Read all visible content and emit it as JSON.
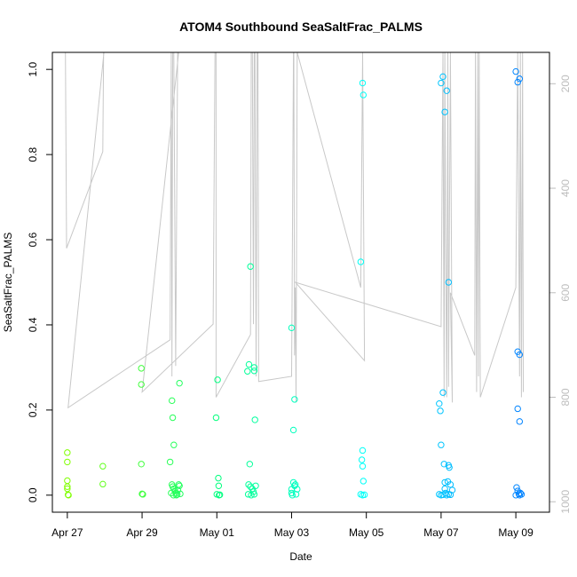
{
  "chart_data": {
    "type": "scatter",
    "title": "ATOM4 Southbound SeaSaltFrac_PALMS",
    "xlabel": "Date",
    "ylabel": "SeaSaltFrac_PALMS",
    "xlim": [
      -0.4,
      12.9
    ],
    "ylim": [
      -0.04,
      1.04
    ],
    "x_ticks": [
      {
        "value": 0,
        "label": "Apr 27"
      },
      {
        "value": 2,
        "label": "Apr 29"
      },
      {
        "value": 4,
        "label": "May 01"
      },
      {
        "value": 6,
        "label": "May 03"
      },
      {
        "value": 8,
        "label": "May 05"
      },
      {
        "value": 10,
        "label": "May 07"
      },
      {
        "value": 12,
        "label": "May 09"
      }
    ],
    "y_ticks": [
      0.0,
      0.2,
      0.4,
      0.6,
      0.8,
      1.0
    ],
    "y_tick_labels": [
      "0.0",
      "0.2",
      "0.4",
      "0.6",
      "0.8",
      "1.0"
    ],
    "right_axis": {
      "label": "",
      "lim": [
        1020,
        140
      ],
      "ticks": [
        200,
        400,
        600,
        800,
        1000
      ],
      "tick_labels": [
        "200",
        "400",
        "600",
        "800",
        "1000"
      ],
      "color": "#bdbdbd"
    },
    "x_units": "days since Apr 27",
    "series": [
      {
        "name": "SeaSaltFrac_PALMS",
        "marker": "open-circle",
        "color_by": "time",
        "color_scale": [
          "#80ff00",
          "#00ff80",
          "#00ffff",
          "#0080ff"
        ],
        "points": [
          [
            0.0,
            0.1
          ],
          [
            0.0,
            0.078
          ],
          [
            0.0,
            0.034
          ],
          [
            0.0,
            0.02
          ],
          [
            0.0,
            0.015
          ],
          [
            0.02,
            0.001
          ],
          [
            0.03,
            0.0
          ],
          [
            0.95,
            0.068
          ],
          [
            0.95,
            0.026
          ],
          [
            1.98,
            0.298
          ],
          [
            1.98,
            0.26
          ],
          [
            1.98,
            0.073
          ],
          [
            2.0,
            0.003
          ],
          [
            2.02,
            0.002
          ],
          [
            2.75,
            0.078
          ],
          [
            2.8,
            0.222
          ],
          [
            2.82,
            0.182
          ],
          [
            2.85,
            0.118
          ],
          [
            2.8,
            0.025
          ],
          [
            2.82,
            0.02
          ],
          [
            2.85,
            0.015
          ],
          [
            2.88,
            0.01
          ],
          [
            2.9,
            0.005
          ],
          [
            2.92,
            0.0
          ],
          [
            2.94,
            0.002
          ],
          [
            2.96,
            0.012
          ],
          [
            2.98,
            0.025
          ],
          [
            3.0,
            0.022
          ],
          [
            3.02,
            0.003
          ],
          [
            2.78,
            0.005
          ],
          [
            2.84,
            0.0
          ],
          [
            3.0,
            0.263
          ],
          [
            3.98,
            0.182
          ],
          [
            4.02,
            0.271
          ],
          [
            4.04,
            0.04
          ],
          [
            4.05,
            0.022
          ],
          [
            4.0,
            0.002
          ],
          [
            4.06,
            0.0
          ],
          [
            4.08,
            0.001
          ],
          [
            4.82,
            0.291
          ],
          [
            4.86,
            0.307
          ],
          [
            4.9,
            0.537
          ],
          [
            4.88,
            0.073
          ],
          [
            4.85,
            0.025
          ],
          [
            4.9,
            0.02
          ],
          [
            4.95,
            0.015
          ],
          [
            4.98,
            0.008
          ],
          [
            4.84,
            0.002
          ],
          [
            4.92,
            0.0
          ],
          [
            5.0,
            0.002
          ],
          [
            5.0,
            0.3
          ],
          [
            5.0,
            0.292
          ],
          [
            5.02,
            0.177
          ],
          [
            5.04,
            0.022
          ],
          [
            6.0,
            0.393
          ],
          [
            6.08,
            0.225
          ],
          [
            6.05,
            0.153
          ],
          [
            6.05,
            0.03
          ],
          [
            6.08,
            0.022
          ],
          [
            6.1,
            0.025
          ],
          [
            6.0,
            0.005
          ],
          [
            6.02,
            0.0
          ],
          [
            6.12,
            0.002
          ],
          [
            6.15,
            0.014
          ],
          [
            6.0,
            0.014
          ],
          [
            7.85,
            0.548
          ],
          [
            7.9,
            0.968
          ],
          [
            7.92,
            0.94
          ],
          [
            7.9,
            0.105
          ],
          [
            7.88,
            0.083
          ],
          [
            7.9,
            0.068
          ],
          [
            7.92,
            0.033
          ],
          [
            7.85,
            0.002
          ],
          [
            7.9,
            0.0
          ],
          [
            7.95,
            0.001
          ],
          [
            10.05,
            0.241
          ],
          [
            10.08,
            0.073
          ],
          [
            10.1,
            0.9
          ],
          [
            10.15,
            0.95
          ],
          [
            10.2,
            0.5
          ],
          [
            10.2,
            0.07
          ],
          [
            10.22,
            0.065
          ],
          [
            10.18,
            0.032
          ],
          [
            10.25,
            0.025
          ],
          [
            10.1,
            0.015
          ],
          [
            10.12,
            0.005
          ],
          [
            10.15,
            0.0
          ],
          [
            10.2,
            0.002
          ],
          [
            10.25,
            0.001
          ],
          [
            10.3,
            0.012
          ],
          [
            10.1,
            0.03
          ],
          [
            9.95,
            0.215
          ],
          [
            9.98,
            0.198
          ],
          [
            10.0,
            0.118
          ],
          [
            9.95,
            0.002
          ],
          [
            10.0,
            0.0
          ],
          [
            10.05,
            0.001
          ],
          [
            10.0,
            0.968
          ],
          [
            10.05,
            0.983
          ],
          [
            12.0,
            0.995
          ],
          [
            12.05,
            0.97
          ],
          [
            12.1,
            0.978
          ],
          [
            12.05,
            0.337
          ],
          [
            12.1,
            0.33
          ],
          [
            12.05,
            0.203
          ],
          [
            12.1,
            0.173
          ],
          [
            12.02,
            0.018
          ],
          [
            12.05,
            0.01
          ],
          [
            12.08,
            0.003
          ],
          [
            12.0,
            0.0
          ],
          [
            12.1,
            0.0
          ],
          [
            12.15,
            0.002
          ],
          [
            12.12,
            0.005
          ]
        ]
      },
      {
        "name": "Pressure (right axis)",
        "style": "line",
        "color": "#c8c8c8",
        "axis": "right",
        "points": [
          [
            -0.05,
            140
          ],
          [
            -0.02,
            515
          ],
          [
            0.95,
            330
          ],
          [
            0.97,
            140
          ],
          [
            0.98,
            140
          ],
          [
            0.02,
            820
          ],
          [
            2.75,
            690
          ],
          [
            2.78,
            140
          ],
          [
            2.8,
            760
          ],
          [
            2.82,
            140
          ],
          [
            2.85,
            140
          ],
          [
            2.9,
            740
          ],
          [
            2.95,
            140
          ],
          [
            2.98,
            140
          ],
          [
            2.0,
            790
          ],
          [
            3.9,
            660
          ],
          [
            3.95,
            140
          ],
          [
            3.98,
            140
          ],
          [
            3.98,
            800
          ],
          [
            4.9,
            680
          ],
          [
            4.92,
            140
          ],
          [
            4.95,
            140
          ],
          [
            4.98,
            660
          ],
          [
            5.0,
            140
          ],
          [
            5.02,
            140
          ],
          [
            5.05,
            760
          ],
          [
            5.08,
            140
          ],
          [
            5.1,
            140
          ],
          [
            5.12,
            770
          ],
          [
            6.0,
            760
          ],
          [
            6.02,
            535
          ],
          [
            6.05,
            140
          ],
          [
            6.06,
            140
          ],
          [
            6.08,
            720
          ],
          [
            6.1,
            590
          ],
          [
            6.12,
            810
          ],
          [
            6.15,
            140
          ],
          [
            7.85,
            590
          ],
          [
            7.9,
            140
          ],
          [
            7.95,
            730
          ],
          [
            6.1,
            580
          ],
          [
            10.0,
            665
          ],
          [
            10.05,
            140
          ],
          [
            10.08,
            800
          ],
          [
            10.1,
            140
          ],
          [
            10.12,
            460
          ],
          [
            10.15,
            800
          ],
          [
            10.18,
            140
          ],
          [
            10.2,
            780
          ],
          [
            10.25,
            140
          ],
          [
            10.3,
            810
          ],
          [
            10.25,
            600
          ],
          [
            10.9,
            720
          ],
          [
            10.92,
            140
          ],
          [
            10.95,
            790
          ],
          [
            10.98,
            140
          ],
          [
            11.0,
            760
          ],
          [
            11.02,
            140
          ],
          [
            11.05,
            800
          ],
          [
            12.0,
            590
          ],
          [
            12.05,
            140
          ],
          [
            12.1,
            760
          ],
          [
            12.12,
            140
          ],
          [
            12.15,
            800
          ],
          [
            12.18,
            140
          ],
          [
            12.2,
            790
          ]
        ]
      }
    ]
  }
}
